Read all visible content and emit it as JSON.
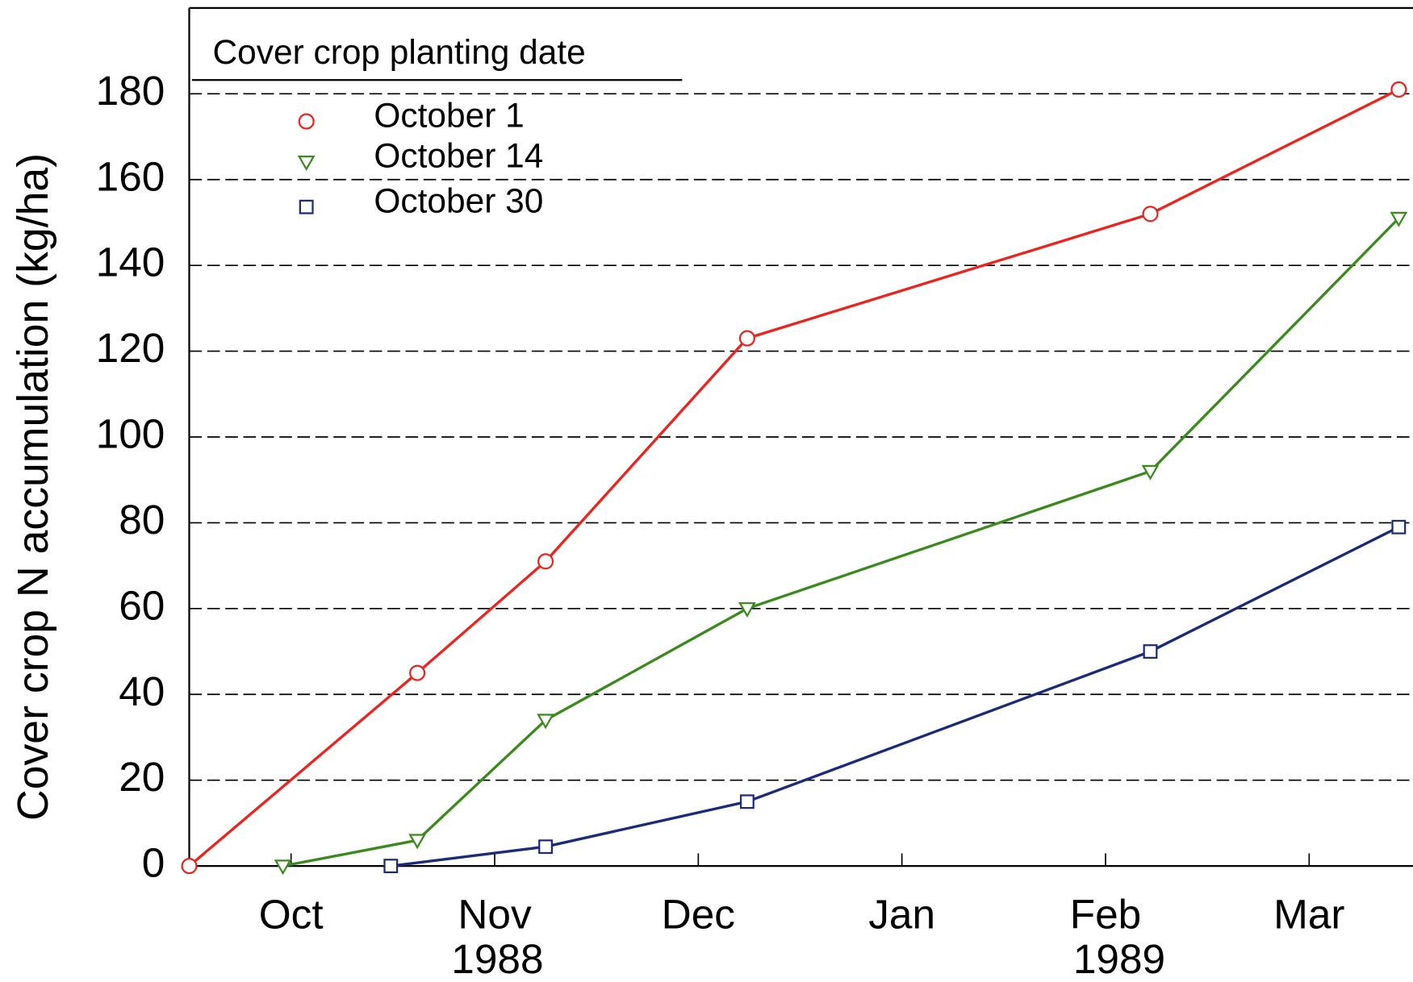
{
  "chart_data": {
    "type": "line",
    "ylabel": "Cover crop N accumulation (kg/ha)",
    "legend_title": "Cover crop planting date",
    "annotations": [
      "1988",
      "1989"
    ],
    "xlim": [
      -0.5,
      5.51
    ],
    "xticks": [
      {
        "value": 0,
        "label": "Oct"
      },
      {
        "value": 1,
        "label": "Nov"
      },
      {
        "value": 2,
        "label": "Dec"
      },
      {
        "value": 3,
        "label": "Jan"
      },
      {
        "value": 4,
        "label": "Feb"
      },
      {
        "value": 5,
        "label": "Mar"
      }
    ],
    "ylim": [
      0,
      200
    ],
    "yticks": [
      0,
      20,
      40,
      60,
      80,
      100,
      120,
      140,
      160,
      180
    ],
    "grid": true,
    "legend": "upper left",
    "series": [
      {
        "name": "October 1",
        "color": "#e8251f",
        "marker": "circle",
        "x": [
          -0.5,
          0.62,
          1.25,
          2.24,
          4.22,
          5.44
        ],
        "values": [
          0,
          45,
          71,
          123,
          152,
          181
        ]
      },
      {
        "name": "October 14",
        "color": "#3a8a1e",
        "marker": "triangle-down",
        "x": [
          -0.04,
          0.62,
          1.25,
          2.24,
          4.22,
          5.44
        ],
        "values": [
          0,
          6,
          34,
          60,
          92,
          151
        ]
      },
      {
        "name": "October 30",
        "color": "#1c2a7a",
        "marker": "square",
        "x": [
          0.49,
          1.25,
          2.24,
          4.22,
          5.44
        ],
        "values": [
          0,
          4.5,
          15,
          50,
          79
        ]
      }
    ]
  }
}
